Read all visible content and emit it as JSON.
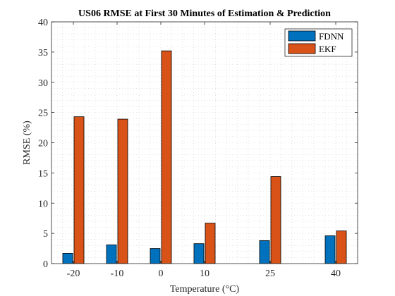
{
  "chart_data": {
    "type": "bar",
    "title": "US06 RMSE at First 30 Minutes of Estimation & Prediction",
    "xlabel": "Temperature (°C)",
    "ylabel": "RMSE (%)",
    "categories": [
      "-20",
      "-10",
      "0",
      "10",
      "25",
      "40"
    ],
    "x": [
      -20,
      -10,
      0,
      10,
      25,
      40
    ],
    "xlim": [
      -25,
      45
    ],
    "ylim": [
      0,
      40
    ],
    "yticks": [
      0,
      5,
      10,
      15,
      20,
      25,
      30,
      35,
      40
    ],
    "grid": true,
    "grid_style": "dotted",
    "legend_position": "top-right",
    "series": [
      {
        "name": "FDNN",
        "color": "#0072BD",
        "values": [
          1.7,
          3.1,
          2.5,
          3.3,
          3.8,
          4.6
        ]
      },
      {
        "name": "EKF",
        "color": "#D95319",
        "values": [
          24.3,
          23.9,
          35.2,
          6.7,
          14.4,
          5.4
        ]
      }
    ]
  }
}
